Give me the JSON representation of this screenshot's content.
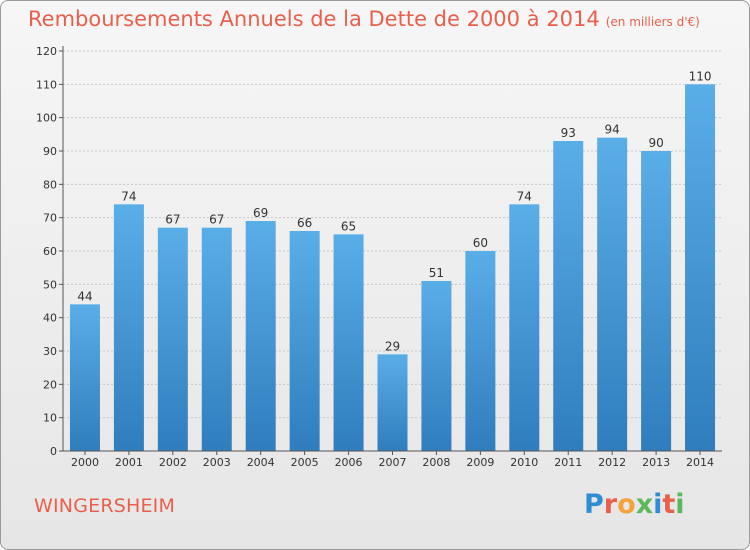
{
  "title": "Remboursements Annuels de la Dette de 2000 à 2014",
  "unit_note": "(en milliers d'€)",
  "city": "WINGERSHEIM",
  "logo": "Proxiti",
  "colors": {
    "title": "#e8604c",
    "bar_light": "#5aaee8",
    "bar_dark": "#2f7dbd",
    "grid": "#c8c8c8",
    "logo_letters": [
      "#2c8fd6",
      "#e8604c",
      "#f2a33a",
      "#5cb85c",
      "#2c8fd6",
      "#e8604c",
      "#5cb85c"
    ]
  },
  "chart_data": {
    "type": "bar",
    "title": "Remboursements Annuels de la Dette de 2000 à 2014",
    "subtitle": "(en milliers d'€)",
    "xlabel": "",
    "ylabel": "",
    "categories": [
      "2000",
      "2001",
      "2002",
      "2003",
      "2004",
      "2005",
      "2006",
      "2007",
      "2008",
      "2009",
      "2010",
      "2011",
      "2012",
      "2013",
      "2014"
    ],
    "values": [
      44,
      74,
      67,
      67,
      69,
      66,
      65,
      29,
      51,
      60,
      74,
      93,
      94,
      90,
      110
    ],
    "ylim": [
      0,
      120
    ],
    "yticks": [
      0,
      10,
      20,
      30,
      40,
      50,
      60,
      70,
      80,
      90,
      100,
      110,
      120
    ],
    "grid": true,
    "legend": "none"
  }
}
